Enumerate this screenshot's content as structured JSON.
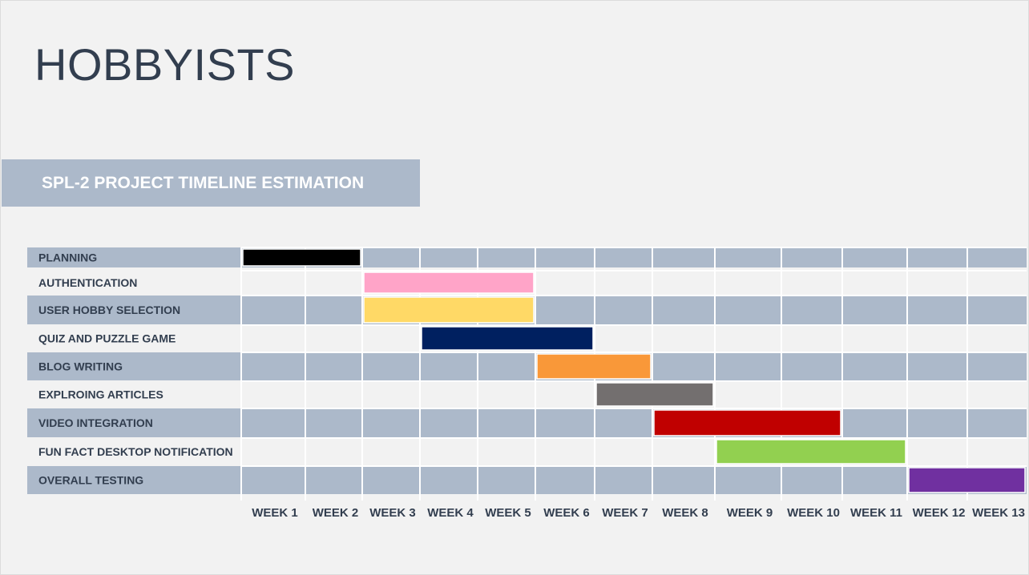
{
  "title": "HOBBYISTS",
  "subtitle": "SPL-2 PROJECT TIMELINE ESTIMATION",
  "chart_data": {
    "type": "gantt",
    "row_colors": {
      "shaded": "#acb9ca",
      "plain": "#f2f2f2"
    },
    "weeks": [
      "WEEK 1",
      "WEEK 2",
      "WEEK 3",
      "WEEK 4",
      "WEEK 5",
      "WEEK 6",
      "WEEK 7",
      "WEEK 8",
      "WEEK 9",
      "WEEK 10",
      "WEEK 11",
      "WEEK 12",
      "WEEK 13"
    ],
    "tasks": [
      {
        "name": "PLANNING",
        "start_week": 1,
        "end_week": 2,
        "color": "#000000"
      },
      {
        "name": "AUTHENTICATION",
        "start_week": 3,
        "end_week": 5,
        "color": "#ffa4c8"
      },
      {
        "name": "USER HOBBY SELECTION",
        "start_week": 3,
        "end_week": 5,
        "color": "#ffd966"
      },
      {
        "name": "QUIZ AND PUZZLE GAME",
        "start_week": 4,
        "end_week": 6,
        "color": "#002060"
      },
      {
        "name": "BLOG WRITING",
        "start_week": 6,
        "end_week": 7,
        "color": "#f99839"
      },
      {
        "name": "EXPLROING ARTICLES",
        "start_week": 7,
        "end_week": 8,
        "color": "#736f6f"
      },
      {
        "name": "VIDEO INTEGRATION",
        "start_week": 8,
        "end_week": 10,
        "color": "#c00000"
      },
      {
        "name": "FUN FACT DESKTOP NOTIFICATION",
        "start_week": 9,
        "end_week": 11,
        "color": "#92d050"
      },
      {
        "name": "OVERALL TESTING",
        "start_week": 12,
        "end_week": 13,
        "color": "#7030a0"
      }
    ]
  }
}
